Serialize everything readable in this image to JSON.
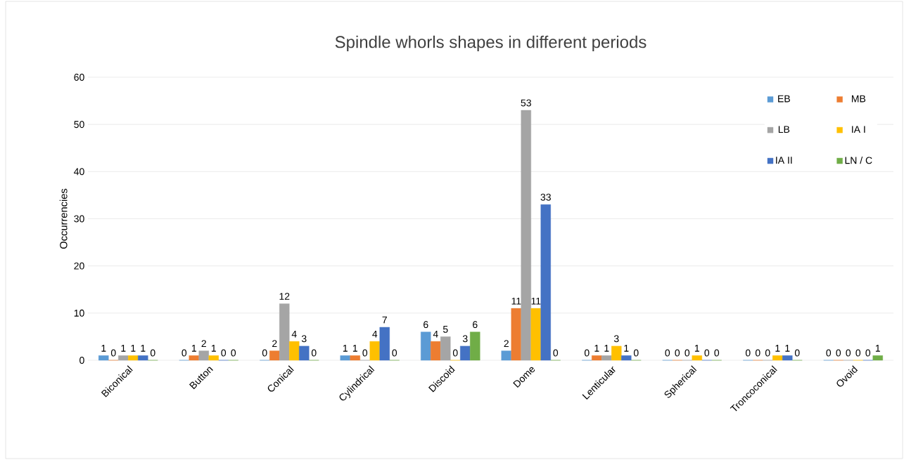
{
  "chart_data": {
    "type": "bar",
    "title": "Spindle whorls shapes in different periods",
    "ylabel": "Occurrencies",
    "categories": [
      "Biconical",
      "Button",
      "Conical",
      "Cylindrical",
      "Discoid",
      "Dome",
      "Lenticular",
      "Spherical",
      "Troncoconical",
      "Ovoid"
    ],
    "series": [
      {
        "name": "EB",
        "color": "#5b9bd5",
        "values": [
          1,
          0,
          0,
          1,
          6,
          2,
          0,
          0,
          0,
          0
        ]
      },
      {
        "name": "MB",
        "color": "#ed7d31",
        "values": [
          0,
          1,
          2,
          1,
          4,
          11,
          1,
          0,
          0,
          0
        ]
      },
      {
        "name": "LB",
        "color": "#a5a5a5",
        "values": [
          1,
          2,
          12,
          0,
          5,
          53,
          1,
          0,
          0,
          0
        ]
      },
      {
        "name": "IA I",
        "color": "#ffc000",
        "values": [
          1,
          1,
          4,
          4,
          0,
          11,
          3,
          1,
          1,
          0
        ]
      },
      {
        "name": "IA II",
        "color": "#4472c4",
        "values": [
          1,
          0,
          3,
          7,
          3,
          33,
          1,
          0,
          1,
          0
        ]
      },
      {
        "name": "LN / C",
        "color": "#70ad47",
        "values": [
          0,
          0,
          0,
          0,
          6,
          0,
          0,
          0,
          0,
          1
        ]
      }
    ],
    "ylim": [
      0,
      60
    ],
    "yticks": [
      0,
      10,
      20,
      30,
      40,
      50,
      60
    ],
    "grid": "y",
    "legend": "top right",
    "data_labels": true
  }
}
